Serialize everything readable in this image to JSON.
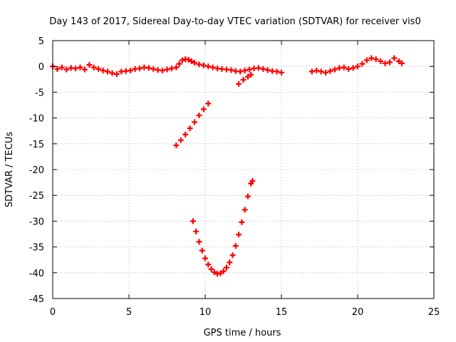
{
  "chart_data": {
    "type": "scatter",
    "title": "Day 143 of 2017, Sidereal Day-to-day VTEC variation (SDTVAR) for receiver vis0",
    "xlabel": "GPS time / hours",
    "ylabel": "SDTVAR / TECUs",
    "xlim": [
      0,
      25
    ],
    "ylim": [
      -45,
      5
    ],
    "xticks": [
      0,
      5,
      10,
      15,
      20,
      25
    ],
    "yticks": [
      5,
      0,
      -5,
      -10,
      -15,
      -20,
      -25,
      -30,
      -35,
      -40,
      -45
    ],
    "grid": true,
    "grid_style": "dotted",
    "legend": "none",
    "marker_color": "#ff0000",
    "series": [
      {
        "points": [
          [
            0.0,
            0.0
          ],
          [
            0.3,
            -0.5
          ],
          [
            0.6,
            -0.2
          ],
          [
            0.9,
            -0.6
          ],
          [
            1.2,
            -0.3
          ],
          [
            1.5,
            -0.4
          ],
          [
            1.8,
            -0.2
          ],
          [
            2.1,
            -0.6
          ],
          [
            2.4,
            0.3
          ],
          [
            2.7,
            -0.2
          ],
          [
            3.0,
            -0.5
          ],
          [
            3.3,
            -0.8
          ],
          [
            3.6,
            -1.0
          ],
          [
            3.9,
            -1.3
          ],
          [
            4.2,
            -1.5
          ],
          [
            4.5,
            -1.0
          ],
          [
            4.8,
            -0.9
          ],
          [
            5.1,
            -0.8
          ],
          [
            5.4,
            -0.5
          ],
          [
            5.7,
            -0.4
          ],
          [
            6.0,
            -0.2
          ],
          [
            6.3,
            -0.3
          ],
          [
            6.6,
            -0.5
          ],
          [
            6.9,
            -0.7
          ],
          [
            7.2,
            -0.8
          ],
          [
            7.5,
            -0.6
          ],
          [
            7.8,
            -0.4
          ],
          [
            8.1,
            -0.2
          ],
          [
            8.3,
            0.5
          ],
          [
            8.5,
            1.2
          ],
          [
            8.7,
            1.4
          ],
          [
            8.9,
            1.3
          ],
          [
            9.1,
            1.0
          ],
          [
            9.3,
            0.7
          ],
          [
            9.6,
            0.4
          ],
          [
            9.9,
            0.2
          ],
          [
            10.2,
            0.0
          ],
          [
            10.5,
            -0.2
          ],
          [
            10.8,
            -0.4
          ],
          [
            11.1,
            -0.5
          ],
          [
            11.4,
            -0.6
          ],
          [
            11.7,
            -0.7
          ],
          [
            12.0,
            -0.9
          ],
          [
            12.3,
            -1.0
          ],
          [
            12.6,
            -0.8
          ],
          [
            12.9,
            -0.6
          ],
          [
            13.2,
            -0.4
          ],
          [
            13.5,
            -0.3
          ],
          [
            13.8,
            -0.5
          ],
          [
            14.1,
            -0.7
          ],
          [
            14.4,
            -0.9
          ],
          [
            14.7,
            -1.0
          ],
          [
            15.0,
            -1.2
          ],
          [
            17.0,
            -1.0
          ],
          [
            17.3,
            -0.8
          ],
          [
            17.6,
            -1.0
          ],
          [
            17.9,
            -1.2
          ],
          [
            18.2,
            -0.9
          ],
          [
            18.5,
            -0.6
          ],
          [
            18.8,
            -0.3
          ],
          [
            19.1,
            -0.2
          ],
          [
            19.4,
            -0.5
          ],
          [
            19.7,
            -0.3
          ],
          [
            20.0,
            0.0
          ],
          [
            20.3,
            0.5
          ],
          [
            20.6,
            1.2
          ],
          [
            20.9,
            1.6
          ],
          [
            21.2,
            1.4
          ],
          [
            21.5,
            1.0
          ],
          [
            21.8,
            0.6
          ],
          [
            22.1,
            0.8
          ],
          [
            22.4,
            1.6
          ],
          [
            22.7,
            1.0
          ],
          [
            22.9,
            0.6
          ],
          [
            12.2,
            -3.4
          ],
          [
            12.5,
            -2.6
          ],
          [
            12.8,
            -2.0
          ],
          [
            13.0,
            -1.6
          ],
          [
            8.1,
            -15.3
          ],
          [
            8.4,
            -14.3
          ],
          [
            8.7,
            -13.2
          ],
          [
            9.0,
            -12.0
          ],
          [
            9.3,
            -10.8
          ],
          [
            9.6,
            -9.5
          ],
          [
            9.9,
            -8.3
          ],
          [
            10.2,
            -7.2
          ],
          [
            9.2,
            -30.0
          ],
          [
            9.4,
            -32.0
          ],
          [
            9.6,
            -34.0
          ],
          [
            9.8,
            -35.7
          ],
          [
            10.0,
            -37.2
          ],
          [
            10.2,
            -38.4
          ],
          [
            10.4,
            -39.3
          ],
          [
            10.6,
            -39.9
          ],
          [
            10.8,
            -40.2
          ],
          [
            11.0,
            -40.1
          ],
          [
            11.2,
            -39.7
          ],
          [
            11.4,
            -39.0
          ],
          [
            11.6,
            -38.0
          ],
          [
            11.8,
            -36.6
          ],
          [
            12.0,
            -34.8
          ],
          [
            12.2,
            -32.6
          ],
          [
            12.4,
            -30.2
          ],
          [
            12.6,
            -27.8
          ],
          [
            12.8,
            -25.2
          ],
          [
            13.0,
            -22.7
          ],
          [
            13.1,
            -22.2
          ]
        ]
      }
    ]
  }
}
